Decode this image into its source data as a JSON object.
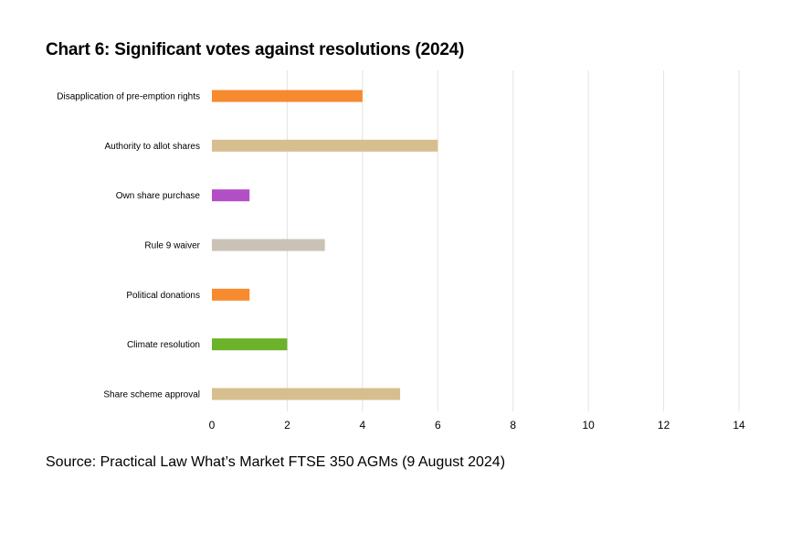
{
  "chart_data": {
    "type": "bar",
    "orientation": "horizontal",
    "title": "Chart 6: Significant votes against resolutions (2024)",
    "categories": [
      "Disapplication of pre-emption rights",
      "Authority to allot shares",
      "Own share purchase",
      "Rule 9 waiver",
      "Political donations",
      "Climate resolution",
      "Share scheme approval"
    ],
    "values": [
      4,
      6,
      1,
      3,
      1,
      2,
      5
    ],
    "colors": [
      "#f7892e",
      "#d7be8e",
      "#b34fc6",
      "#cbc2b7",
      "#f7892e",
      "#6cb22a",
      "#d7be8e"
    ],
    "xlim": [
      0,
      14
    ],
    "xticks": [
      "0",
      "2",
      "4",
      "6",
      "8",
      "10",
      "12",
      "14"
    ],
    "grid": true,
    "legend": "none"
  },
  "source": "Source: Practical Law What’s Market FTSE 350 AGMs (9 August 2024)"
}
